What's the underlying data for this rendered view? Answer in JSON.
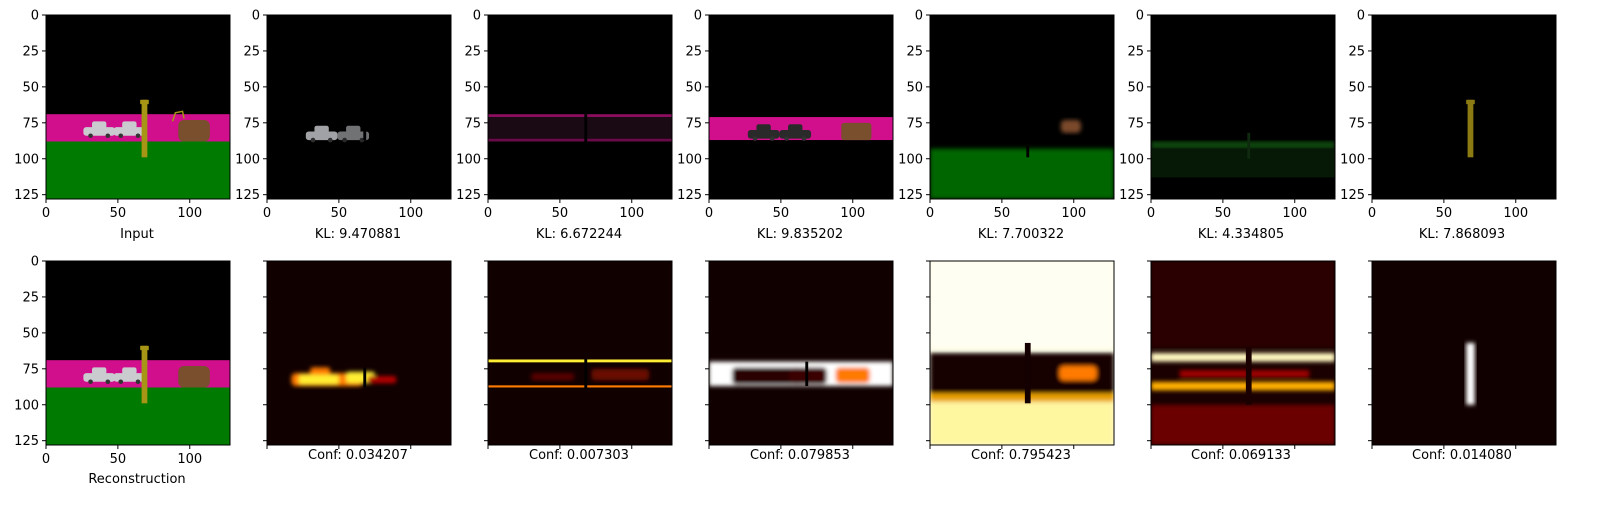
{
  "chart_data": {
    "type": "image-grid",
    "axis_range": [
      0,
      128
    ],
    "xticks": [
      0,
      50,
      100
    ],
    "yticks": [
      0,
      25,
      50,
      75,
      100,
      125
    ],
    "colors": {
      "background": "#000000",
      "pink_band": "#d10f8d",
      "green_ground": "#007a00",
      "car_gray": "#c9cbcf",
      "pole_yellow": "#a79615",
      "object_brown": "#7a4f2e",
      "heat_dark": "#110000",
      "heat_red": "#b20000",
      "heat_orange": "#ff7a00",
      "heat_yellow": "#ffee33",
      "heat_white": "#ffffff"
    },
    "top_row": [
      {
        "caption": "Input"
      },
      {
        "caption": "KL: 9.470881"
      },
      {
        "caption": "KL: 6.672244"
      },
      {
        "caption": "KL: 9.835202"
      },
      {
        "caption": "KL: 7.700322"
      },
      {
        "caption": "KL: 4.334805"
      },
      {
        "caption": "KL: 7.868093"
      }
    ],
    "bottom_row": [
      {
        "caption": "Reconstruction"
      },
      {
        "caption": "Conf: 0.034207"
      },
      {
        "caption": "Conf: 0.007303"
      },
      {
        "caption": "Conf: 0.079853"
      },
      {
        "caption": "Conf: 0.795423"
      },
      {
        "caption": "Conf: 0.069133"
      },
      {
        "caption": "Conf: 0.014080"
      }
    ]
  }
}
